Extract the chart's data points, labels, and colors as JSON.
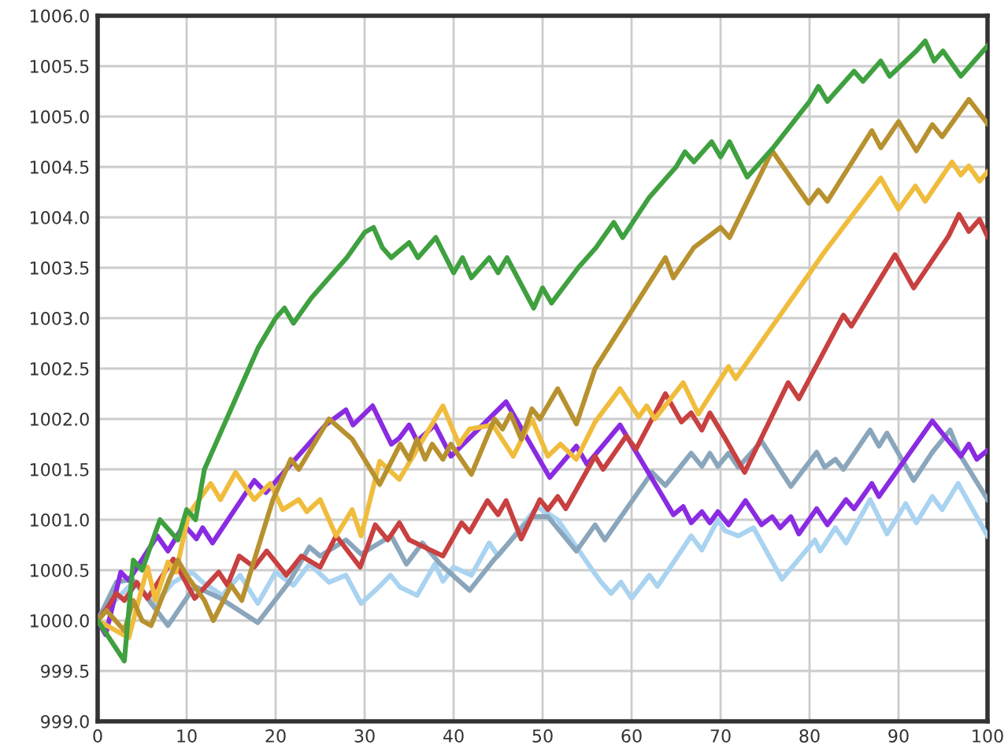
{
  "chart_data": {
    "type": "line",
    "xlim": [
      0,
      100
    ],
    "ylim": [
      999,
      1006
    ],
    "xticks": [
      0,
      10,
      20,
      30,
      40,
      50,
      60,
      70,
      80,
      90,
      100
    ],
    "yticks": [
      {
        "value": 999,
        "label": "999.0"
      },
      {
        "value": 999.5,
        "label": "999.5"
      },
      {
        "value": 1000,
        "label": "1000.0"
      },
      {
        "value": 1000.5,
        "label": "1000.5"
      },
      {
        "value": 1001,
        "label": "1001.0"
      },
      {
        "value": 1001.5,
        "label": "1001.5"
      },
      {
        "value": 1002,
        "label": "1002.0"
      },
      {
        "value": 1002.5,
        "label": "1002.5"
      },
      {
        "value": 1003,
        "label": "1003.0"
      },
      {
        "value": 1003.5,
        "label": "1003.5"
      },
      {
        "value": 1004,
        "label": "1004.0"
      },
      {
        "value": 1004.5,
        "label": "1004.5"
      },
      {
        "value": 1005,
        "label": "1005.0"
      },
      {
        "value": 1005.5,
        "label": "1005.5"
      },
      {
        "value": 1006,
        "label": "1006.0"
      }
    ],
    "grid": true,
    "marker": "none",
    "line_style": "solid",
    "series": [
      {
        "color": "#a9d3f0",
        "x": [
          0,
          2,
          4,
          6.5,
          8.5,
          10.6,
          11.8,
          14,
          16,
          18,
          20,
          22,
          23.8,
          26,
          27.9,
          29.6,
          31.7,
          32.9,
          34,
          35.9,
          37.9,
          38.8,
          40,
          42,
          44,
          45,
          49.4,
          51.7,
          55.6,
          56.5,
          57.7,
          58.8,
          60,
          62,
          62.9,
          66.7,
          67.9,
          69.7,
          70.5,
          72,
          73.7,
          76.9,
          80.6,
          81.2,
          82.9,
          84.1,
          86.8,
          88.7,
          90.8,
          92,
          93.8,
          94.9,
          96.7,
          100
        ],
        "values": [
          1000,
          1000.2,
          1000.38,
          1000.17,
          1000.38,
          1000.48,
          1000.38,
          1000.25,
          1000.45,
          1000.17,
          1000.48,
          1000.35,
          1000.56,
          1000.38,
          1000.45,
          1000.17,
          1000.34,
          1000.45,
          1000.33,
          1000.25,
          1000.56,
          1000.39,
          1000.53,
          1000.45,
          1000.77,
          1000.64,
          1001.13,
          1001.0,
          1000.5,
          1000.39,
          1000.27,
          1000.38,
          1000.22,
          1000.45,
          1000.34,
          1000.84,
          1000.7,
          1001.0,
          1000.89,
          1000.84,
          1000.92,
          1000.41,
          1000.8,
          1000.69,
          1000.92,
          1000.77,
          1001.2,
          1000.86,
          1001.16,
          1000.97,
          1001.23,
          1001.1,
          1001.36,
          1000.84
        ]
      },
      {
        "color": "#8aa6bc",
        "x": [
          0,
          2.1,
          3.9,
          5.6,
          7.9,
          10.9,
          13.8,
          18,
          21.5,
          23.8,
          25,
          27.9,
          29.6,
          33,
          34.7,
          36.5,
          38.5,
          41.8,
          44.6,
          48.8,
          50.6,
          53.8,
          55.9,
          57,
          62.3,
          63.8,
          66.7,
          67.9,
          68.8,
          69.7,
          70.9,
          72,
          74.6,
          77.9,
          80.8,
          81.7,
          82.9,
          83.8,
          86.8,
          87.8,
          88.7,
          91.7,
          93.8,
          95.8,
          97,
          100
        ],
        "values": [
          1000,
          1000.38,
          1000.41,
          1000.22,
          999.95,
          1000.34,
          1000.22,
          999.98,
          1000.38,
          1000.73,
          1000.64,
          1000.8,
          1000.66,
          1000.84,
          1000.56,
          1000.77,
          1000.56,
          1000.3,
          1000.61,
          1001.03,
          1001.03,
          1000.69,
          1000.95,
          1000.8,
          1001.47,
          1001.34,
          1001.66,
          1001.53,
          1001.66,
          1001.53,
          1001.66,
          1001.52,
          1001.78,
          1001.33,
          1001.67,
          1001.52,
          1001.6,
          1001.5,
          1001.89,
          1001.73,
          1001.86,
          1001.39,
          1001.67,
          1001.89,
          1001.63,
          1001.2
        ]
      },
      {
        "color": "#8a2be2",
        "x": [
          0,
          0.9,
          2.6,
          3.5,
          6.7,
          7.9,
          9.7,
          11.1,
          11.8,
          12.9,
          17.6,
          18.9,
          25.6,
          27.9,
          28.7,
          30.9,
          33,
          33.9,
          35,
          35.9,
          37.9,
          39.7,
          45.9,
          50.8,
          53.8,
          55,
          58.7,
          63.5,
          64.7,
          65.8,
          66.7,
          67.9,
          68.8,
          69.7,
          70.9,
          72.8,
          74.6,
          75.8,
          76.7,
          77.9,
          78.8,
          80.8,
          82,
          84.1,
          85,
          87,
          87.8,
          93.8,
          97,
          97.9,
          98.8,
          100
        ],
        "values": [
          1000,
          999.86,
          1000.48,
          1000.4,
          1000.84,
          1000.69,
          1000.95,
          1000.81,
          1000.92,
          1000.77,
          1001.39,
          1001.27,
          1001.94,
          1002.09,
          1001.94,
          1002.13,
          1001.75,
          1001.81,
          1001.94,
          1001.78,
          1001.94,
          1001.63,
          1002.17,
          1001.42,
          1001.73,
          1001.55,
          1001.94,
          1001.23,
          1001.05,
          1001.13,
          1000.97,
          1001.08,
          1000.97,
          1001.08,
          1000.95,
          1001.19,
          1000.95,
          1001.03,
          1000.92,
          1001.03,
          1000.86,
          1001.11,
          1000.95,
          1001.2,
          1001.11,
          1001.36,
          1001.23,
          1001.98,
          1001.63,
          1001.75,
          1001.6,
          1001.69
        ]
      },
      {
        "color": "#c84040",
        "x": [
          0,
          1.2,
          2.1,
          3,
          4.4,
          5.6,
          8.5,
          10.9,
          13.6,
          14.6,
          15.9,
          17.6,
          19,
          21.2,
          22.9,
          25,
          26.8,
          29.5,
          31.2,
          32.6,
          33.9,
          35,
          38.8,
          40.9,
          41.8,
          43.8,
          45,
          45.9,
          47.6,
          49.7,
          50.6,
          51.7,
          52.6,
          55.9,
          56.8,
          59.4,
          60.5,
          63.8,
          65.6,
          66.7,
          67.9,
          68.8,
          70.5,
          72.7,
          77.6,
          78.8,
          83.8,
          84.7,
          89.6,
          91.7,
          95.6,
          96.8,
          97.9,
          99.1,
          100
        ],
        "values": [
          1000,
          1000.14,
          1000.27,
          1000.2,
          1000.38,
          1000.22,
          1000.61,
          1000.22,
          1000.48,
          1000.35,
          1000.64,
          1000.53,
          1000.69,
          1000.45,
          1000.64,
          1000.53,
          1000.84,
          1000.53,
          1000.95,
          1000.8,
          1000.97,
          1000.8,
          1000.64,
          1000.97,
          1000.88,
          1001.19,
          1001.05,
          1001.19,
          1000.81,
          1001.2,
          1001.1,
          1001.23,
          1001.11,
          1001.63,
          1001.5,
          1001.83,
          1001.7,
          1002.25,
          1001.97,
          1002.06,
          1001.89,
          1002.06,
          1001.81,
          1001.47,
          1002.36,
          1002.2,
          1003.03,
          1002.92,
          1003.63,
          1003.3,
          1003.81,
          1004.03,
          1003.86,
          1003.98,
          1003.81
        ]
      },
      {
        "color": "#f0bc3c",
        "x": [
          0,
          3.5,
          5.6,
          6.5,
          7.9,
          8.8,
          10.2,
          12.7,
          13.8,
          15.5,
          17.6,
          19.4,
          20.8,
          22.6,
          23.5,
          25,
          26.8,
          28.6,
          29.6,
          31.7,
          33.9,
          38.8,
          40.6,
          41.8,
          44.4,
          46.7,
          48.8,
          50.6,
          52,
          53.8,
          55.9,
          58.7,
          60.8,
          61.7,
          62.6,
          65.8,
          67.5,
          70.9,
          71.7,
          81.7,
          88,
          90,
          91.9,
          93,
          96,
          97,
          97.9,
          99.1,
          100
        ],
        "values": [
          1000,
          999.83,
          1000.53,
          1000.2,
          1000.58,
          1000.48,
          1001.05,
          1001.36,
          1001.2,
          1001.47,
          1001.2,
          1001.36,
          1001.1,
          1001.2,
          1001.08,
          1001.2,
          1000.84,
          1001.1,
          1000.84,
          1001.58,
          1001.4,
          1002.13,
          1001.75,
          1001.9,
          1001.94,
          1001.63,
          1002.0,
          1001.63,
          1001.75,
          1001.6,
          1001.97,
          1002.3,
          1002.02,
          1002.13,
          1002.0,
          1002.36,
          1002.05,
          1002.52,
          1002.4,
          1003.66,
          1004.39,
          1004.08,
          1004.31,
          1004.16,
          1004.55,
          1004.42,
          1004.51,
          1004.36,
          1004.45
        ]
      },
      {
        "color": "#b8912f",
        "x": [
          0,
          1,
          3,
          4,
          5,
          6,
          8,
          9,
          10,
          12,
          13,
          15,
          16.2,
          19.7,
          21.7,
          22.6,
          26,
          28.6,
          31.7,
          34,
          35,
          35.9,
          36.8,
          37.6,
          38.8,
          39.7,
          42,
          44.6,
          45.5,
          46.4,
          47.6,
          48.8,
          49.7,
          51.7,
          53.8,
          55.9,
          63.8,
          64.7,
          67,
          70,
          71,
          75.8,
          79.9,
          81,
          82,
          87,
          88,
          90,
          92,
          93.8,
          94.9,
          97.9,
          100
        ],
        "values": [
          1000,
          1000.1,
          999.9,
          1000.2,
          1000.0,
          999.95,
          1000.4,
          1000.6,
          1000.45,
          1000.2,
          1000.0,
          1000.35,
          1000.2,
          1001.2,
          1001.6,
          1001.5,
          1002.0,
          1001.8,
          1001.35,
          1001.75,
          1001.6,
          1001.8,
          1001.6,
          1001.75,
          1001.6,
          1001.75,
          1001.45,
          1002.0,
          1001.9,
          1002.05,
          1001.8,
          1002.1,
          1002.0,
          1002.3,
          1001.95,
          1002.5,
          1003.6,
          1003.4,
          1003.7,
          1003.9,
          1003.8,
          1004.66,
          1004.14,
          1004.27,
          1004.16,
          1004.86,
          1004.69,
          1004.95,
          1004.66,
          1004.92,
          1004.8,
          1005.17,
          1004.93
        ]
      },
      {
        "color": "#3fa03f",
        "x": [
          0,
          3,
          4,
          5,
          7,
          9,
          10,
          11,
          12,
          14,
          16,
          18,
          20,
          21,
          22,
          24,
          26,
          28,
          30,
          31,
          32,
          33,
          35,
          36,
          38,
          40,
          41,
          42,
          44,
          45,
          46,
          49,
          50,
          51,
          54,
          56,
          58,
          59,
          62,
          65,
          66,
          67,
          69,
          70,
          71,
          73,
          76,
          80,
          81,
          82,
          85,
          86,
          88,
          89,
          92,
          93,
          94,
          95,
          97,
          100
        ],
        "values": [
          1000,
          999.6,
          1000.6,
          1000.5,
          1001.0,
          1000.8,
          1001.1,
          1001.0,
          1001.5,
          1001.9,
          1002.3,
          1002.7,
          1003.0,
          1003.1,
          1002.95,
          1003.2,
          1003.4,
          1003.6,
          1003.85,
          1003.9,
          1003.7,
          1003.6,
          1003.75,
          1003.6,
          1003.8,
          1003.45,
          1003.6,
          1003.4,
          1003.6,
          1003.45,
          1003.6,
          1003.1,
          1003.3,
          1003.15,
          1003.5,
          1003.7,
          1003.95,
          1003.8,
          1004.2,
          1004.5,
          1004.65,
          1004.55,
          1004.75,
          1004.6,
          1004.75,
          1004.4,
          1004.7,
          1005.15,
          1005.3,
          1005.15,
          1005.45,
          1005.35,
          1005.55,
          1005.4,
          1005.65,
          1005.75,
          1005.55,
          1005.65,
          1005.4,
          1005.7
        ]
      }
    ]
  }
}
